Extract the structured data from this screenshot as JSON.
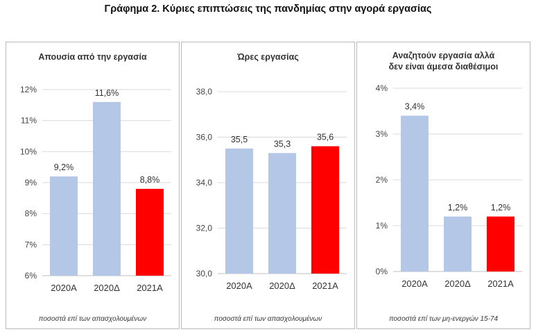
{
  "title": "Γράφημα 2. Κύριες επιπτώσεις της πανδημίας στην αγορά εργασίας",
  "chart_data": [
    {
      "type": "bar",
      "title": "Απουσία από την εργασία",
      "categories": [
        "2020Α",
        "2020Δ",
        "2021Α"
      ],
      "values": [
        9.2,
        11.6,
        8.8
      ],
      "value_labels": [
        "9,2%",
        "11,6%",
        "8,8%"
      ],
      "ylim": [
        6,
        12
      ],
      "yticks": [
        6,
        7,
        8,
        9,
        10,
        11,
        12
      ],
      "ytick_labels": [
        "6%",
        "7%",
        "8%",
        "9%",
        "10%",
        "11%",
        "12%"
      ],
      "note": "ποσοστά επί των  απασχολουμένων",
      "colors": [
        "#b4c7e7",
        "#b4c7e7",
        "#ff0000"
      ],
      "grid": true
    },
    {
      "type": "bar",
      "title": "Ώρες εργασίας",
      "categories": [
        "2020Α",
        "2020Δ",
        "2021Α"
      ],
      "values": [
        35.5,
        35.3,
        35.6
      ],
      "value_labels": [
        "35,5",
        "35,3",
        "35,6"
      ],
      "ylim": [
        30,
        38
      ],
      "yticks": [
        30,
        32,
        34,
        36,
        38
      ],
      "ytick_labels": [
        "30,0",
        "32,0",
        "34,0",
        "36,0",
        "38,0"
      ],
      "note": "ποσοστά επί των απασχολουμένων",
      "colors": [
        "#b4c7e7",
        "#b4c7e7",
        "#ff0000"
      ],
      "grid": true
    },
    {
      "type": "bar",
      "title": "Αναζητούν εργασία αλλά δεν είναι άμεσα διαθέσιμοι",
      "title_lines": [
        "Αναζητούν εργασία αλλά",
        "δεν είναι άμεσα διαθέσιμοι"
      ],
      "categories": [
        "2020Α",
        "2020Δ",
        "2021Α"
      ],
      "values": [
        3.4,
        1.2,
        1.2
      ],
      "value_labels": [
        "3,4%",
        "1,2%",
        "1,2%"
      ],
      "ylim": [
        0,
        4
      ],
      "yticks": [
        0,
        1,
        2,
        3,
        4
      ],
      "ytick_labels": [
        "0%",
        "1%",
        "2%",
        "3%",
        "4%"
      ],
      "note": "ποσοστά επί των μη-ενεργών 15-74",
      "colors": [
        "#b4c7e7",
        "#b4c7e7",
        "#ff0000"
      ],
      "grid": true
    }
  ]
}
